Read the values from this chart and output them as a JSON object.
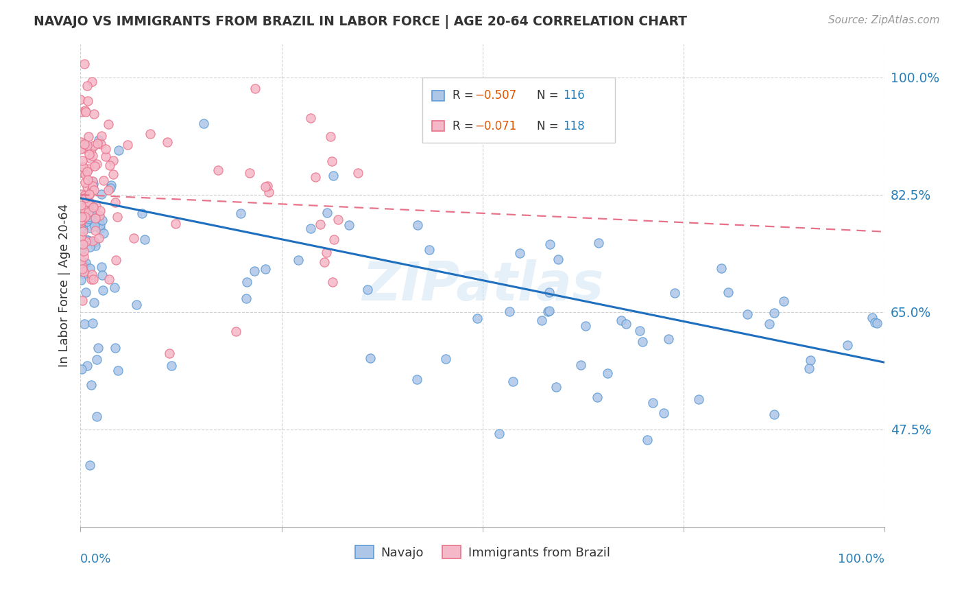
{
  "title": "NAVAJO VS IMMIGRANTS FROM BRAZIL IN LABOR FORCE | AGE 20-64 CORRELATION CHART",
  "source": "Source: ZipAtlas.com",
  "ylabel": "In Labor Force | Age 20-64",
  "ytick_labels": [
    "100.0%",
    "82.5%",
    "65.0%",
    "47.5%"
  ],
  "ytick_values": [
    1.0,
    0.825,
    0.65,
    0.475
  ],
  "xlim": [
    0.0,
    1.0
  ],
  "ylim": [
    0.33,
    1.05
  ],
  "navajo_color": "#aec6e8",
  "brazil_color": "#f5b8c8",
  "navajo_edge_color": "#5b9bd5",
  "brazil_edge_color": "#e8728a",
  "trendline_navajo_color": "#1f6fbf",
  "trendline_brazil_color": "#e8728a",
  "legend_R_navajo": "-0.507",
  "legend_N_navajo": "116",
  "legend_R_brazil": "-0.071",
  "legend_N_brazil": "118",
  "navajo_label": "Navajo",
  "brazil_label": "Immigrants from Brazil",
  "watermark": "ZIPatlas",
  "background_color": "#ffffff",
  "grid_color": "#cccccc",
  "nav_trendline_x0": 0.0,
  "nav_trendline_y0": 0.82,
  "nav_trendline_x1": 1.0,
  "nav_trendline_y1": 0.575,
  "bra_trendline_x0": 0.0,
  "bra_trendline_y0": 0.825,
  "bra_trendline_x1": 1.0,
  "bra_trendline_y1": 0.77
}
